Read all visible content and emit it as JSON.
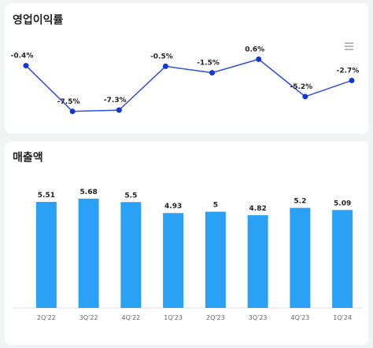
{
  "chart_data": [
    {
      "type": "line",
      "title": "영업이익률",
      "values": [
        -0.4,
        -7.5,
        -7.3,
        -0.5,
        -1.5,
        0.6,
        -5.2,
        -2.7
      ],
      "value_labels": [
        "-0.4%",
        "-7.5%",
        "-7.3%",
        "-0.5%",
        "-1.5%",
        "0.6%",
        "-5.2%",
        "-2.7%"
      ],
      "color": "#2f4fe0",
      "ylim": [
        -8.5,
        1.5
      ]
    },
    {
      "type": "bar",
      "title": "매출액",
      "categories": [
        "2Q'22",
        "3Q'22",
        "4Q'22",
        "1Q'23",
        "2Q'23",
        "3Q'23",
        "4Q'23",
        "1Q'24"
      ],
      "values": [
        5.51,
        5.68,
        5.5,
        4.93,
        5,
        4.82,
        5.2,
        5.09
      ],
      "color": "#2aa1f5",
      "ylim": [
        0,
        6
      ]
    }
  ]
}
